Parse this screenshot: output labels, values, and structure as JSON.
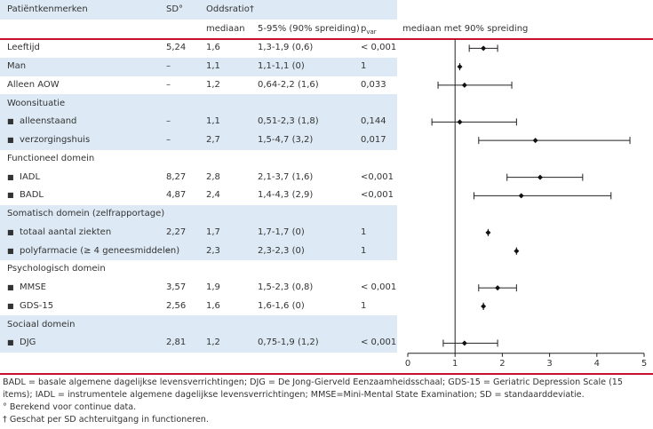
{
  "header": {
    "characteristic": "Patiëntkenmerken",
    "sd": "SD°",
    "oddsratio": "Oddsratio†",
    "median": "mediaan",
    "interval": "5-95% (90% spreiding)",
    "p": {
      "main": "p",
      "sub": "var"
    }
  },
  "rows": [
    {
      "label": "Leeftijd",
      "sd": "5,24",
      "median": "1,6",
      "interval": "1,3-1,9 (0,6)",
      "p": "< 0,001"
    },
    {
      "label": "Man",
      "sd": "–",
      "median": "1,1",
      "interval": "1,1-1,1 (0)",
      "p": "1"
    },
    {
      "label": "Alleen AOW",
      "sd": "–",
      "median": "1,2",
      "interval": "0,64-2,2 (1,6)",
      "p": "0,033"
    },
    {
      "label": "Woonsituatie"
    },
    {
      "label": "alleenstaand",
      "sd": "–",
      "median": "1,1",
      "interval": "0,51-2,3 (1,8)",
      "p": "0,144"
    },
    {
      "label": "verzorgingshuis",
      "sd": "–",
      "median": "2,7",
      "interval": "1,5-4,7 (3,2)",
      "p": "0,017"
    },
    {
      "label": "Functioneel domein"
    },
    {
      "label": "IADL",
      "sd": "8,27",
      "median": "2,8",
      "interval": "2,1-3,7 (1,6)",
      "p": "<0,001"
    },
    {
      "label": "BADL",
      "sd": "4,87",
      "median": "2,4",
      "interval": "1,4-4,3 (2,9)",
      "p": "<0,001"
    },
    {
      "label": "Somatisch domein (zelfrapportage)"
    },
    {
      "label": "totaal aantal ziekten",
      "sd": "2,27",
      "median": "1,7",
      "interval": "1,7-1,7 (0)",
      "p": "1"
    },
    {
      "label": "polyfarmacie (≥ 4 geneesmiddelen)",
      "sd": "–",
      "median": "2,3",
      "interval": "2,3-2,3 (0)",
      "p": "1"
    },
    {
      "label": "Psychologisch domein"
    },
    {
      "label": "MMSE",
      "sd": "3,57",
      "median": "1,9",
      "interval": "1,5-2,3 (0,8)",
      "p": "< 0,001"
    },
    {
      "label": "GDS-15",
      "sd": "2,56",
      "median": "1,6",
      "interval": "1,6-1,6 (0)",
      "p": "1"
    },
    {
      "label": "Sociaal domein"
    },
    {
      "label": "DJG",
      "sd": "2,81",
      "median": "1,2",
      "interval": "0,75-1,9 (1,2)",
      "p": "< 0,001"
    }
  ],
  "chart_data": {
    "type": "forest",
    "title": "mediaan met 90% spreiding",
    "xlim": [
      0,
      5
    ],
    "xticks": [
      0,
      1,
      2,
      3,
      4,
      5
    ],
    "refline": 1,
    "median": [
      1.6,
      1.1,
      1.2,
      1.1,
      2.7,
      2.8,
      2.4,
      1.7,
      2.3,
      1.9,
      1.6,
      1.2
    ],
    "low": [
      1.3,
      1.1,
      0.64,
      0.51,
      1.5,
      2.1,
      1.4,
      1.7,
      2.3,
      1.5,
      1.6,
      0.75
    ],
    "high": [
      1.9,
      1.1,
      2.2,
      2.3,
      4.7,
      3.7,
      4.3,
      1.7,
      2.3,
      2.3,
      1.6,
      1.9
    ]
  },
  "footnotes": [
    "BADL = basale algemene dagelijkse levensverrichtingen; DJG = De Jong-Gierveld Eenzaamheidsschaal; GDS-15 = Geriatric Depression Scale (15 items); IADL = instrumentele algemene dagelijkse levensverrichtingen; MMSE=Mini-Mental State Examination; SD = standaarddeviatie.",
    "° Berekend voor continue data.",
    "† Geschat per SD achteruitgang in functioneren."
  ]
}
